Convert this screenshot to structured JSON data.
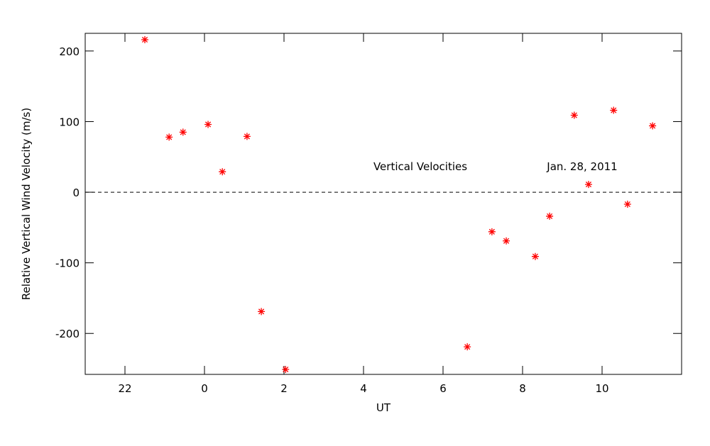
{
  "chart_data": {
    "type": "scatter",
    "xlabel": "UT",
    "ylabel": "Relative Vertical Wind Velocity (m/s)",
    "annotations": [
      "Vertical Velocities",
      "Jan. 28, 2011"
    ],
    "xlim": [
      -3,
      12
    ],
    "xticks": [
      {
        "value": -2,
        "label": "22"
      },
      0,
      2,
      4,
      6,
      8,
      10
    ],
    "ylim": [
      -258,
      225
    ],
    "yticks": [
      -200,
      -100,
      0,
      100,
      200
    ],
    "reference_line": 0,
    "color": "#ff0000",
    "x": [
      -1.5,
      -0.89,
      -0.54,
      0.09,
      0.45,
      1.07,
      1.43,
      2.04,
      6.61,
      7.23,
      7.59,
      8.32,
      8.68,
      9.3,
      9.66,
      10.29,
      10.64,
      11.27
    ],
    "values": [
      216,
      78,
      85,
      96,
      29,
      79,
      -169,
      -251,
      -219,
      -56,
      -69,
      -91,
      -34,
      109,
      11,
      116,
      -17,
      94
    ]
  }
}
